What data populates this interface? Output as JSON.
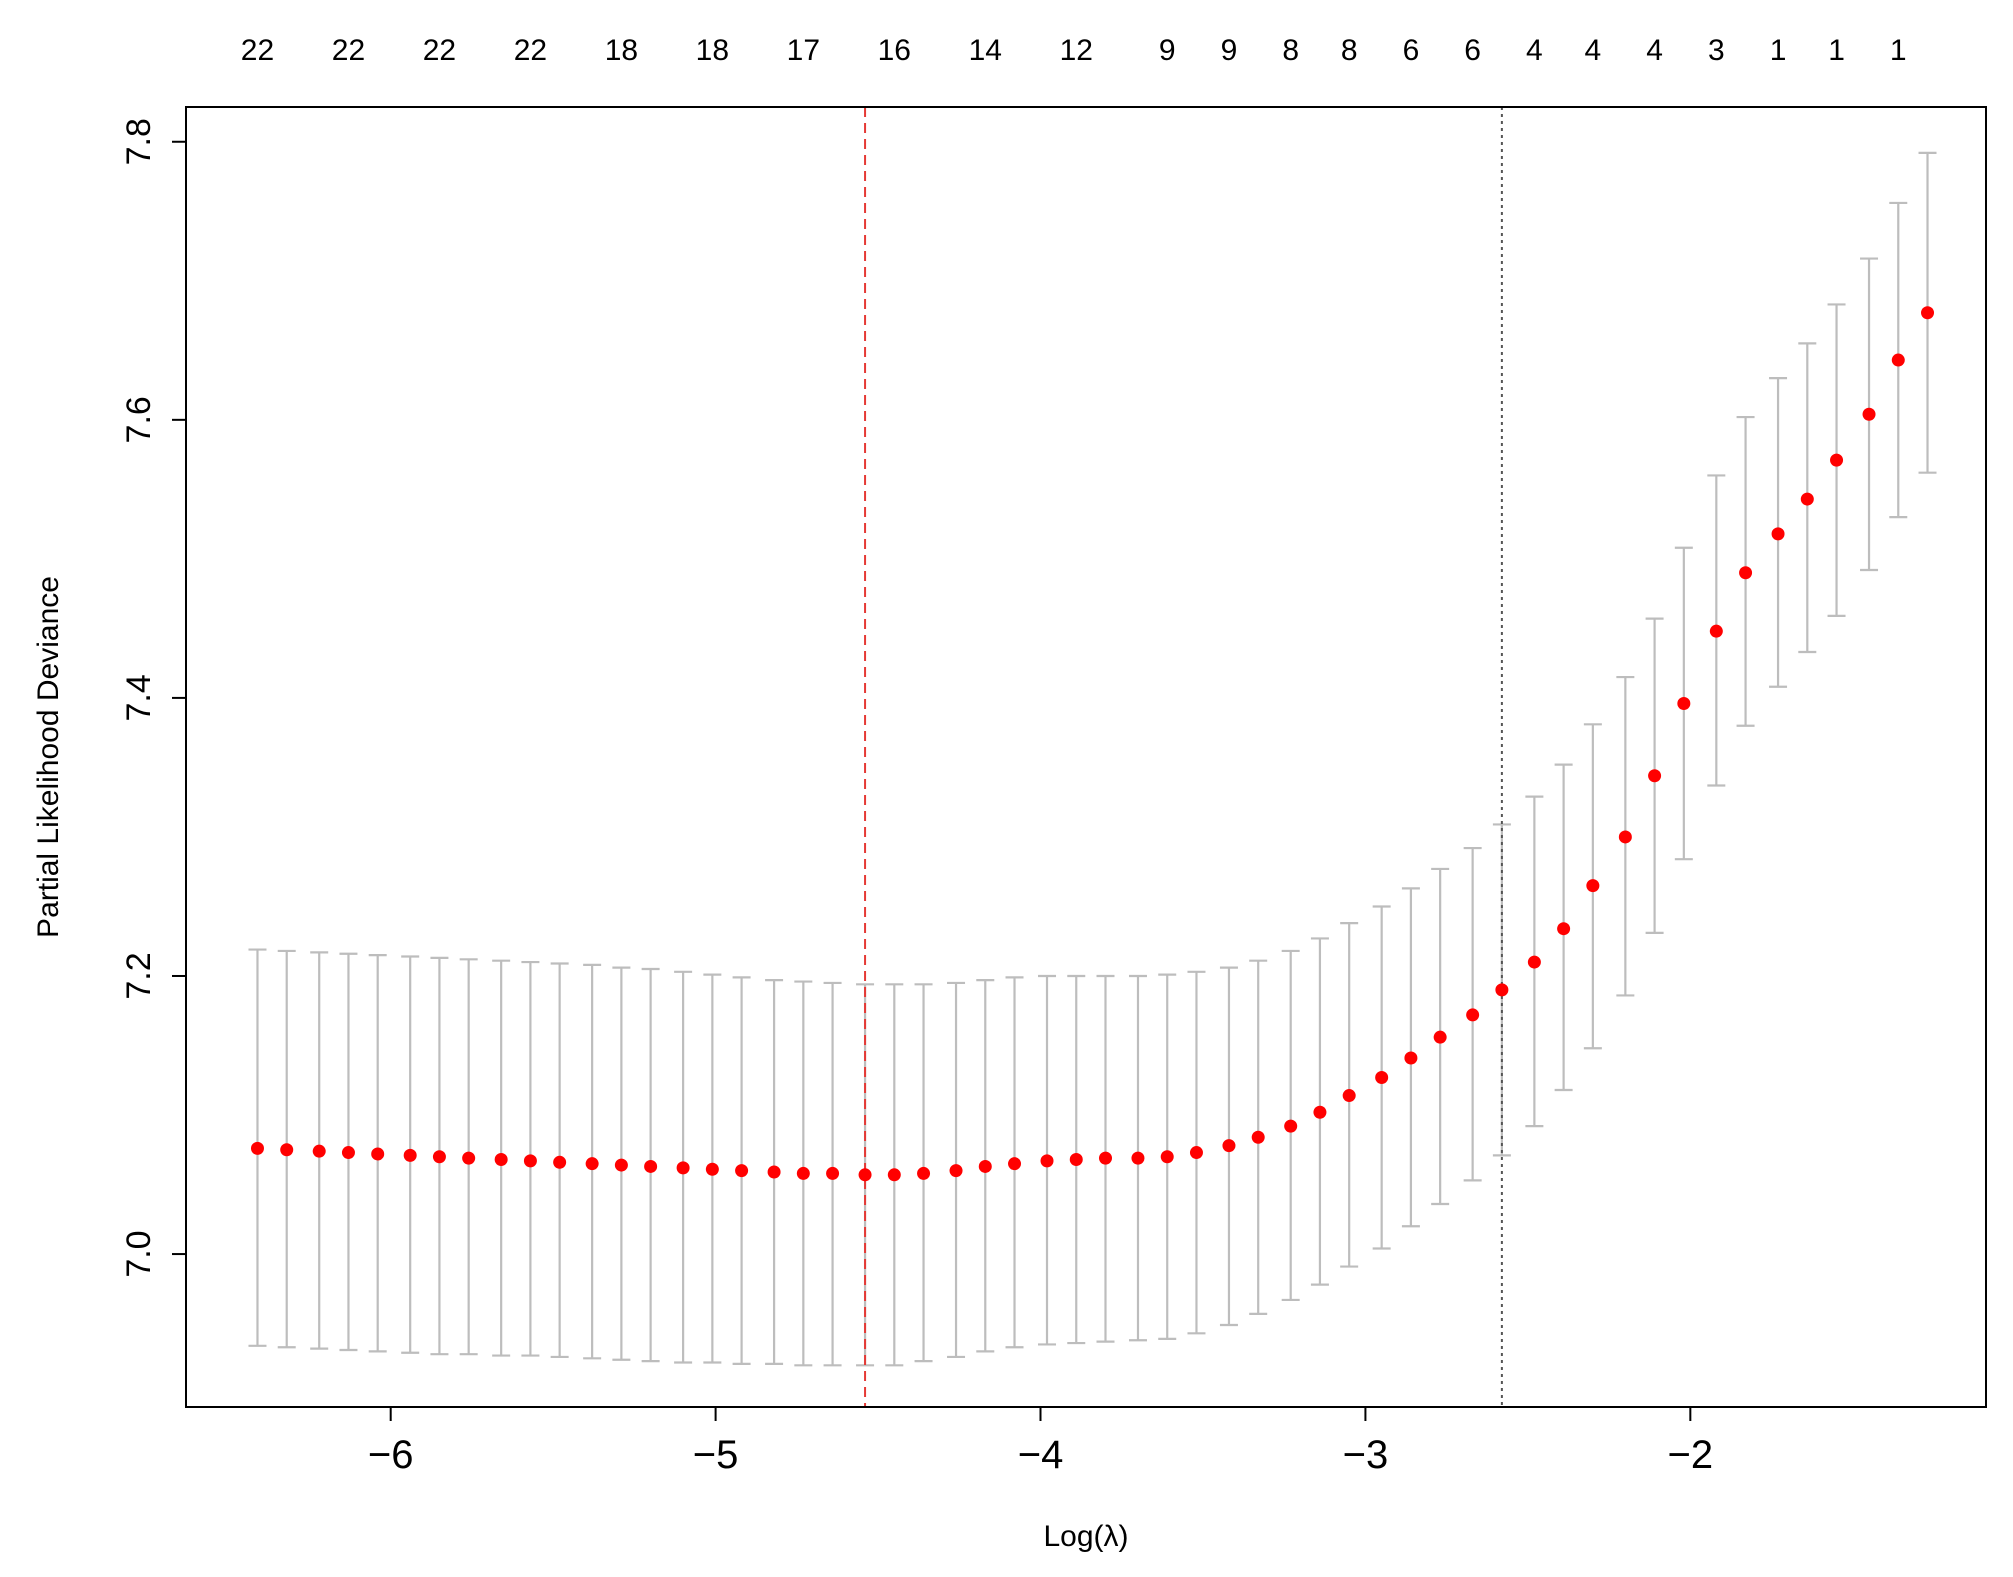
{
  "chart_data": {
    "type": "scatter",
    "title": "",
    "xlabel": "Log(λ)",
    "ylabel": "Partial Likelihood Deviance",
    "xlim": [
      -6.63,
      -1.09
    ],
    "ylim": [
      6.89,
      7.825
    ],
    "x_ticks": [
      -6,
      -5,
      -4,
      -3,
      -2
    ],
    "x_tick_labels": [
      "−6",
      "−5",
      "−4",
      "−3",
      "−2"
    ],
    "y_ticks": [
      7.0,
      7.2,
      7.4,
      7.6,
      7.8
    ],
    "y_tick_labels": [
      "7.0",
      "7.2",
      "7.4",
      "7.6",
      "7.8"
    ],
    "top_axis": {
      "x": [
        -6.41,
        -6.13,
        -5.85,
        -5.57,
        -5.29,
        -5.01,
        -4.73,
        -4.45,
        -4.17,
        -3.89,
        -3.61,
        -3.42,
        -3.23,
        -3.05,
        -2.86,
        -2.67,
        -2.48,
        -2.3,
        -2.11,
        -1.92,
        -1.73,
        -1.55,
        -1.36
      ],
      "labels": [
        "22",
        "22",
        "22",
        "22",
        "18",
        "18",
        "17",
        "16",
        "14",
        "12",
        "9",
        "9",
        "8",
        "8",
        "6",
        "6",
        "4",
        "4",
        "4",
        "3",
        "1",
        "1",
        "1"
      ]
    },
    "series": [
      {
        "x": [
          -6.41,
          -6.32,
          -6.22,
          -6.13,
          -6.04,
          -5.94,
          -5.85,
          -5.76,
          -5.66,
          -5.57,
          -5.48,
          -5.38,
          -5.29,
          -5.2,
          -5.1,
          -5.01,
          -4.92,
          -4.82,
          -4.73,
          -4.64,
          -4.54,
          -4.45,
          -4.36,
          -4.26,
          -4.17,
          -4.08,
          -3.98,
          -3.89,
          -3.8,
          -3.7,
          -3.61,
          -3.52,
          -3.42,
          -3.33,
          -3.23,
          -3.14,
          -3.05,
          -2.95,
          -2.86,
          -2.77,
          -2.67,
          -2.58,
          -2.48,
          -2.39,
          -2.3,
          -2.2,
          -2.11,
          -2.02,
          -1.92,
          -1.83,
          -1.73,
          -1.64,
          -1.55,
          -1.45,
          -1.36,
          -1.27
        ],
        "y": [
          7.076,
          7.075,
          7.074,
          7.073,
          7.072,
          7.071,
          7.07,
          7.069,
          7.068,
          7.067,
          7.066,
          7.065,
          7.064,
          7.063,
          7.062,
          7.061,
          7.06,
          7.059,
          7.058,
          7.058,
          7.057,
          7.057,
          7.058,
          7.06,
          7.063,
          7.065,
          7.067,
          7.068,
          7.069,
          7.069,
          7.07,
          7.073,
          7.078,
          7.084,
          7.092,
          7.102,
          7.114,
          7.127,
          7.141,
          7.156,
          7.172,
          7.19,
          7.21,
          7.234,
          7.265,
          7.3,
          7.344,
          7.396,
          7.448,
          7.49,
          7.518,
          7.543,
          7.571,
          7.604,
          7.643,
          7.677
        ],
        "lower": [
          6.934,
          6.933,
          6.932,
          6.931,
          6.93,
          6.929,
          6.928,
          6.928,
          6.927,
          6.927,
          6.926,
          6.925,
          6.924,
          6.923,
          6.922,
          6.922,
          6.921,
          6.921,
          6.92,
          6.92,
          6.92,
          6.92,
          6.923,
          6.926,
          6.93,
          6.933,
          6.935,
          6.936,
          6.937,
          6.938,
          6.939,
          6.943,
          6.949,
          6.957,
          6.967,
          6.978,
          6.991,
          7.004,
          7.02,
          7.036,
          7.053,
          7.071,
          7.092,
          7.118,
          7.148,
          7.186,
          7.231,
          7.284,
          7.337,
          7.38,
          7.408,
          7.433,
          7.459,
          7.492,
          7.53,
          7.562
        ],
        "upper": [
          7.219,
          7.218,
          7.217,
          7.216,
          7.215,
          7.214,
          7.213,
          7.212,
          7.211,
          7.21,
          7.209,
          7.208,
          7.206,
          7.205,
          7.203,
          7.201,
          7.199,
          7.197,
          7.196,
          7.195,
          7.194,
          7.194,
          7.194,
          7.195,
          7.197,
          7.199,
          7.2,
          7.2,
          7.2,
          7.2,
          7.201,
          7.203,
          7.206,
          7.211,
          7.218,
          7.227,
          7.238,
          7.25,
          7.263,
          7.277,
          7.292,
          7.309,
          7.329,
          7.352,
          7.381,
          7.415,
          7.457,
          7.508,
          7.56,
          7.602,
          7.63,
          7.655,
          7.683,
          7.716,
          7.756,
          7.792
        ]
      }
    ],
    "vlines": [
      {
        "x": -4.54,
        "style": "dashed",
        "color": "#e53935"
      },
      {
        "x": -2.58,
        "style": "dotted",
        "color": "#555555"
      }
    ],
    "colors": {
      "points": "#ff0000",
      "error_bars": "#bdbdbd",
      "axes": "#000000"
    },
    "grid": false,
    "legend": "none"
  }
}
